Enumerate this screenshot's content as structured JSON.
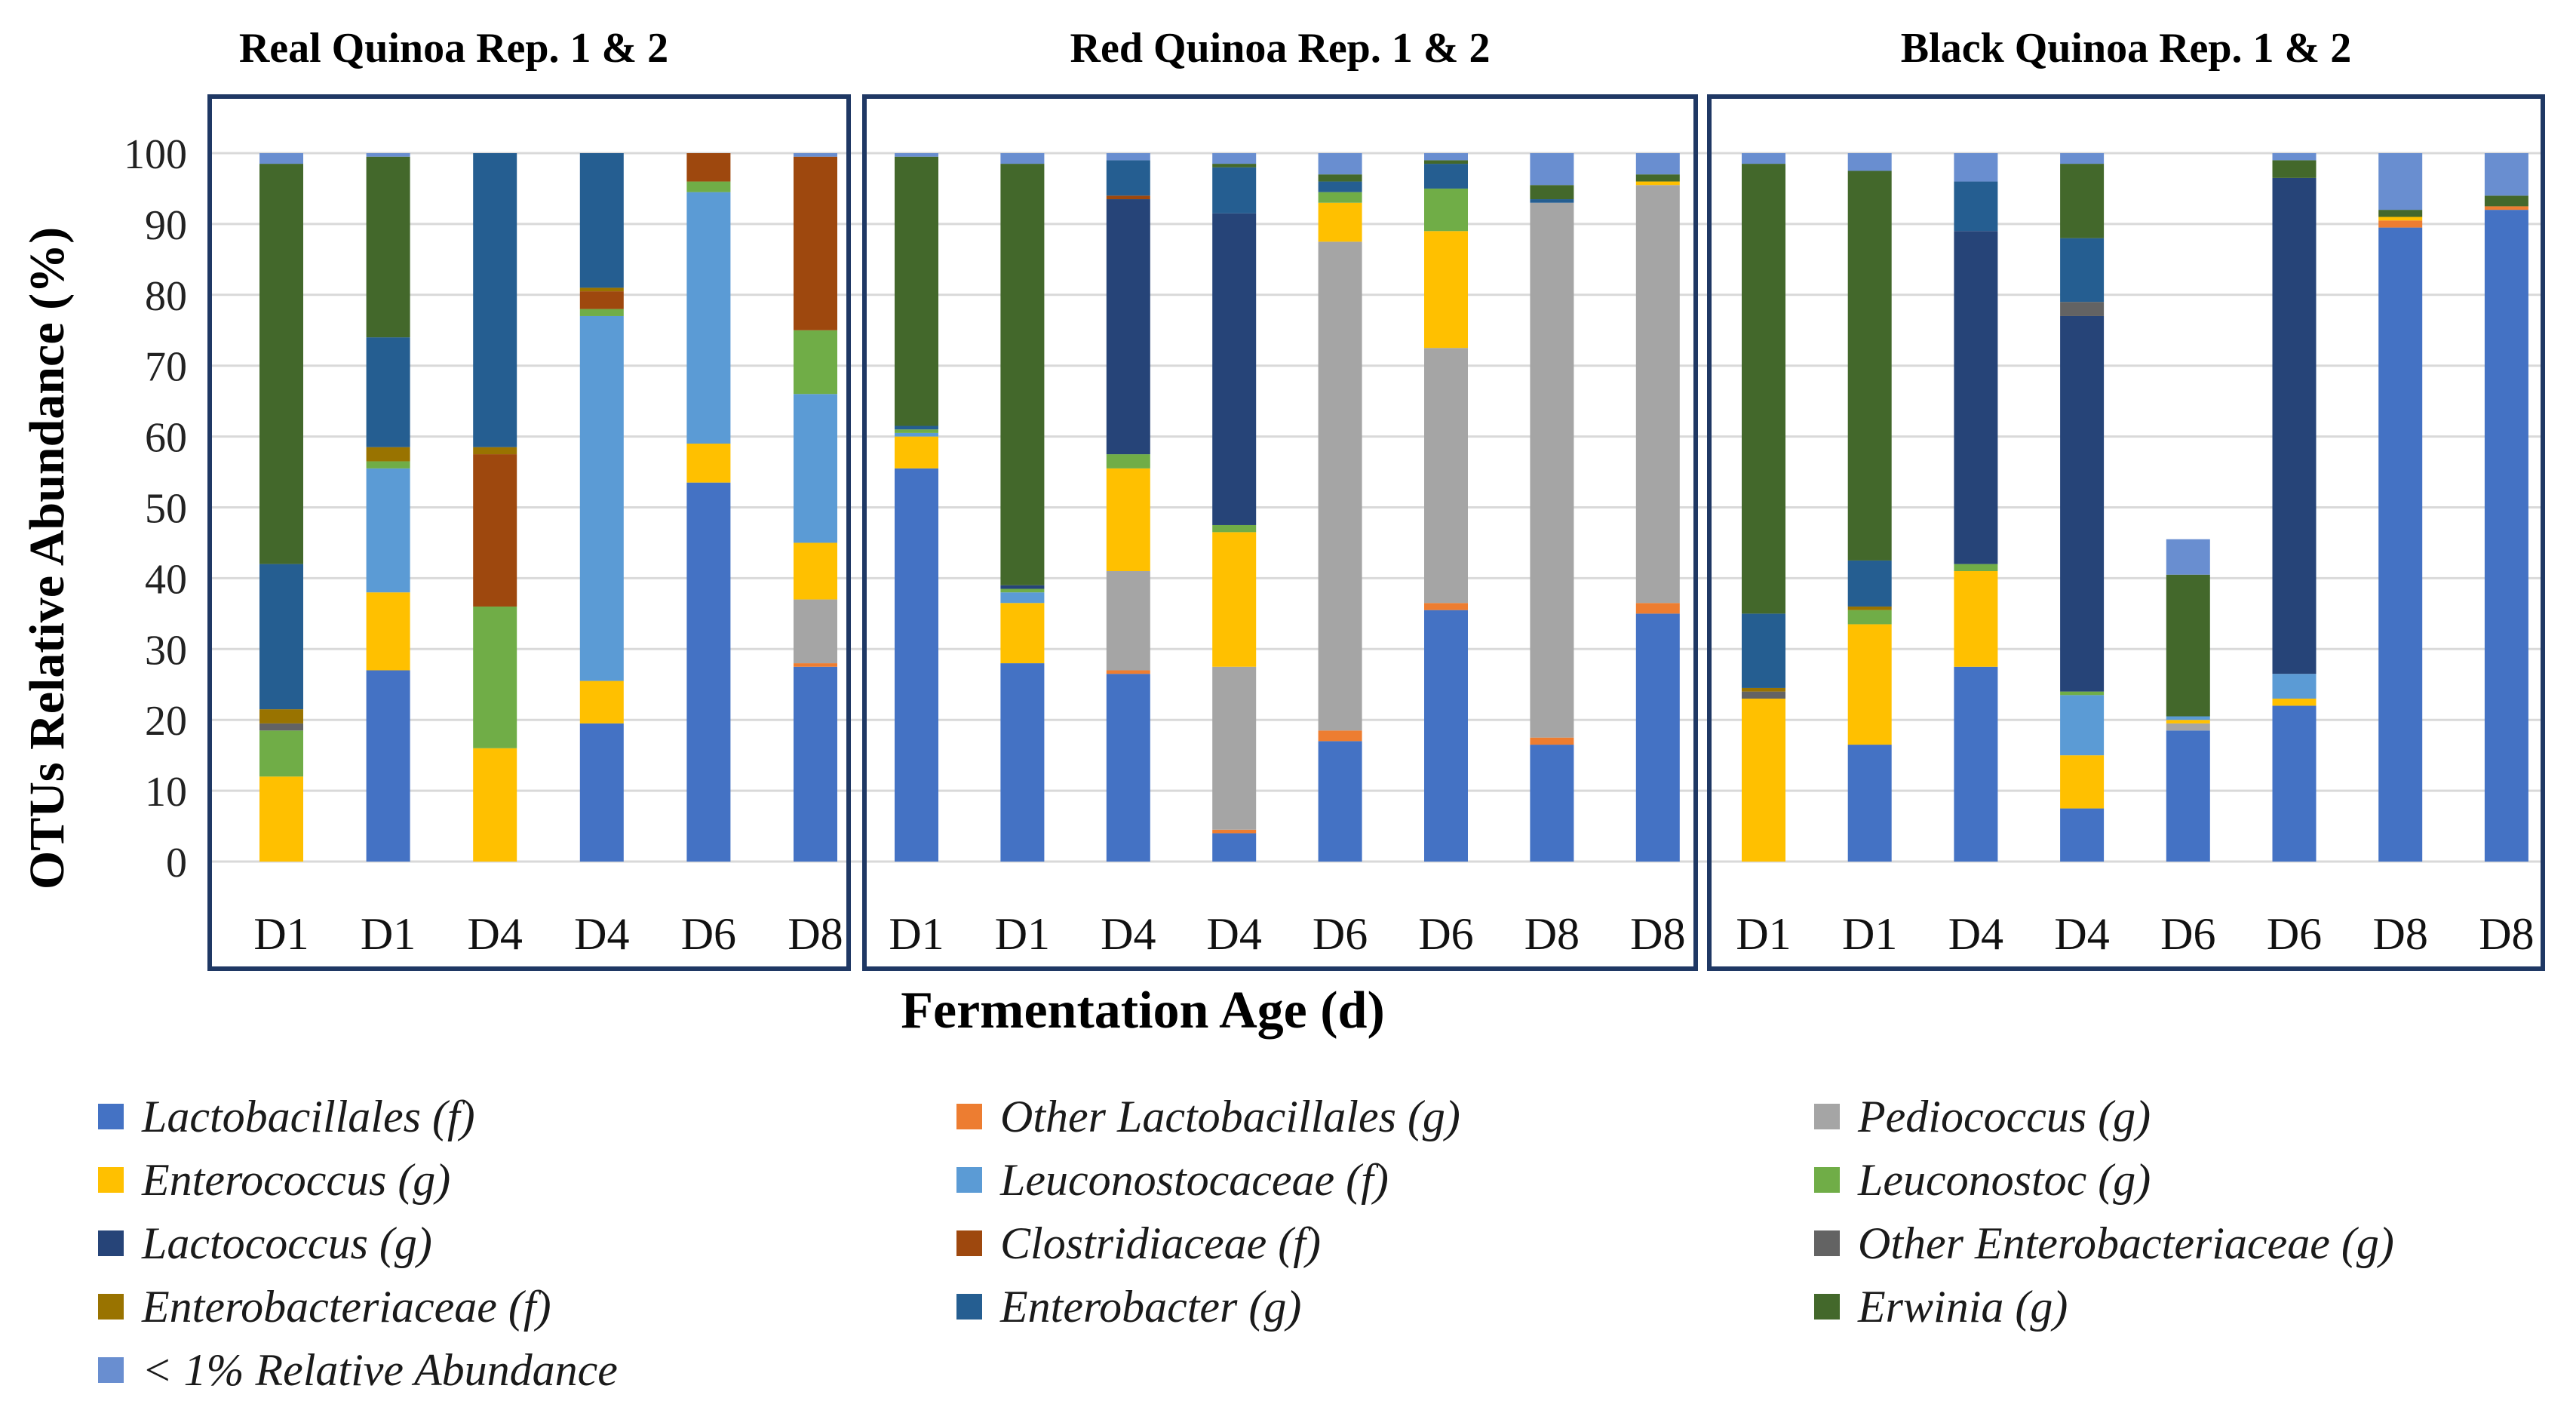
{
  "chart_data": {
    "type": "bar",
    "stacked": true,
    "ylabel": "OTUs Relative Abundance (%)",
    "xlabel": "Fermentation Age (d)",
    "ylim": [
      0,
      100
    ],
    "yticks": [
      0,
      10,
      20,
      30,
      40,
      50,
      60,
      70,
      80,
      90,
      100
    ],
    "grid": true,
    "series": [
      {
        "name": "Lactobacillales (f)",
        "color": "#4472C4"
      },
      {
        "name": "Other Lactobacillales (g)",
        "color": "#ED7D31"
      },
      {
        "name": "Pediococcus (g)",
        "color": "#A5A5A5"
      },
      {
        "name": "Enterococcus (g)",
        "color": "#FFC000"
      },
      {
        "name": "Leuconostocaceae (f)",
        "color": "#5B9BD5"
      },
      {
        "name": "Leuconostoc (g)",
        "color": "#70AD47"
      },
      {
        "name": "Lactococcus (g)",
        "color": "#264478"
      },
      {
        "name": "Clostridiaceae (f)",
        "color": "#9E480E"
      },
      {
        "name": "Other Enterobacteriaceae (g)",
        "color": "#636363"
      },
      {
        "name": "Enterobacteriaceae (f)",
        "color": "#997300"
      },
      {
        "name": "Enterobacter (g)",
        "color": "#255E91"
      },
      {
        "name": "Erwinia (g)",
        "color": "#43682B"
      },
      {
        "name": "< 1% Relative Abundance",
        "color": "#698ED0"
      }
    ],
    "panels": [
      {
        "title": "Real Quinoa Rep. 1 & 2",
        "categories": [
          "D1",
          "D1",
          "D4",
          "D4",
          "D6",
          "D8"
        ],
        "values": [
          [
            0,
            0,
            0,
            12,
            0,
            6.5,
            0,
            0,
            1,
            2,
            20.5,
            56.5,
            1.5
          ],
          [
            27,
            0,
            0,
            11,
            17.5,
            1,
            0,
            0,
            0,
            2,
            15.5,
            25.5,
            0.5
          ],
          [
            0,
            0,
            0,
            16,
            0,
            20,
            0,
            21.5,
            0,
            1,
            41.5,
            0,
            0
          ],
          [
            19.5,
            0,
            0,
            6,
            51.5,
            1,
            0,
            2.5,
            0,
            0.5,
            19,
            0,
            0
          ],
          [
            53.5,
            0,
            0,
            5.5,
            35.5,
            1.5,
            0,
            4,
            0,
            0,
            0,
            0,
            0
          ],
          [
            27.5,
            0.5,
            9,
            8,
            21,
            9,
            0,
            24.5,
            0,
            0,
            0,
            0,
            0.5
          ]
        ]
      },
      {
        "title": "Red Quinoa Rep. 1 & 2",
        "categories": [
          "D1",
          "D1",
          "D4",
          "D4",
          "D6",
          "D6",
          "D8",
          "D8"
        ],
        "values": [
          [
            55.5,
            0,
            0,
            4.5,
            0.5,
            0.5,
            0,
            0,
            0,
            0,
            0.5,
            38,
            0.5
          ],
          [
            28,
            0,
            0,
            8.5,
            1.5,
            0.5,
            0.5,
            0,
            0,
            0,
            0,
            59.5,
            1.5
          ],
          [
            26.5,
            0.5,
            14,
            14.5,
            0,
            2,
            36,
            0.5,
            0,
            0,
            5,
            0,
            1
          ],
          [
            4,
            0.5,
            23,
            19,
            0,
            1,
            44,
            0,
            0,
            0,
            6.5,
            0.5,
            1.5
          ],
          [
            17,
            1.5,
            69,
            5.5,
            0,
            1.5,
            0,
            0,
            0,
            0,
            1.5,
            1,
            3
          ],
          [
            35.5,
            1,
            36,
            16.5,
            0,
            6,
            0,
            0,
            0,
            0,
            3.5,
            0.5,
            1
          ],
          [
            16.5,
            1,
            75.5,
            0,
            0,
            0,
            0,
            0,
            0,
            0,
            0.5,
            2,
            4.5
          ],
          [
            35,
            1.5,
            59,
            0.5,
            0,
            0,
            0,
            0,
            0,
            0,
            0,
            1,
            3
          ]
        ]
      },
      {
        "title": "Black Quinoa Rep. 1 & 2",
        "categories": [
          "D1",
          "D1",
          "D4",
          "D4",
          "D6",
          "D6",
          "D8",
          "D8"
        ],
        "values": [
          [
            0,
            0,
            0,
            23,
            0,
            0,
            0,
            0,
            1,
            0.5,
            10.5,
            63.5,
            1.5
          ],
          [
            16.5,
            0,
            0,
            17,
            0,
            2,
            0,
            0,
            0,
            0.5,
            6.5,
            55,
            2.5
          ],
          [
            27.5,
            0,
            0,
            13.5,
            0,
            1,
            47,
            0,
            0,
            0,
            7,
            0,
            4
          ],
          [
            7.5,
            0,
            0,
            7.5,
            8.5,
            0.5,
            53,
            0,
            2,
            0,
            9,
            10.5,
            1.5
          ],
          [
            18.5,
            0,
            1,
            0.5,
            0.5,
            0,
            0,
            0,
            0,
            0,
            0,
            20,
            5
          ],
          [
            22,
            0,
            0,
            1,
            3.5,
            0,
            70,
            0,
            0,
            0,
            0,
            2.5,
            1
          ],
          [
            89.5,
            1,
            0,
            0.5,
            0,
            0,
            0,
            0,
            0,
            0,
            0,
            1,
            8
          ],
          [
            92,
            0.5,
            0,
            0,
            0,
            0,
            0,
            0,
            0,
            0,
            0,
            1.5,
            6
          ]
        ]
      }
    ]
  }
}
